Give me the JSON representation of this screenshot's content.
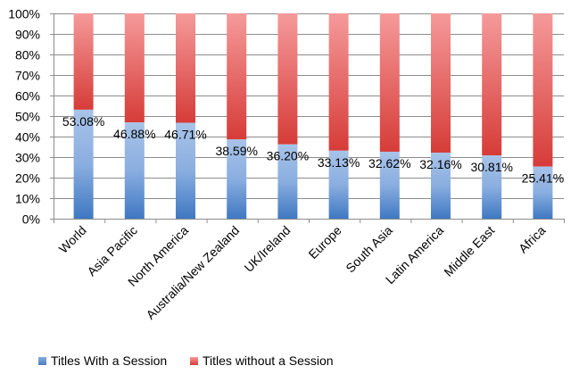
{
  "chart_data": {
    "type": "bar",
    "stacked": true,
    "normalized": true,
    "title": "",
    "xlabel": "",
    "ylabel": "",
    "ylim": [
      0,
      100
    ],
    "yticks": [
      "0%",
      "10%",
      "20%",
      "30%",
      "40%",
      "50%",
      "60%",
      "70%",
      "80%",
      "90%",
      "100%"
    ],
    "grid": true,
    "legend_position": "bottom",
    "categories": [
      "World",
      "Asia Pacific",
      "North America",
      "Australia/New Zealand",
      "UK/Ireland",
      "Europe",
      "South Asia",
      "Latin America",
      "Middle East",
      "Africa"
    ],
    "series": [
      {
        "name": "Titles With a Session",
        "color": "#4a7ebb",
        "values": [
          53.08,
          46.88,
          46.71,
          38.59,
          36.2,
          33.13,
          32.62,
          32.16,
          30.81,
          25.41
        ]
      },
      {
        "name": "Titles without a Session",
        "color": "#d9403e",
        "values": [
          46.92,
          53.12,
          53.29,
          61.41,
          63.8,
          66.87,
          67.38,
          67.84,
          69.19,
          74.59
        ]
      }
    ],
    "data_labels": [
      "53.08%",
      "46.88%",
      "46.71%",
      "38.59%",
      "36.20%",
      "33.13%",
      "32.62%",
      "32.16%",
      "30.81%",
      "25.41%"
    ]
  },
  "legend": {
    "items": [
      {
        "label": "Titles With a Session",
        "color": "#4a7ebb"
      },
      {
        "label": "Titles without a Session",
        "color": "#e05a5a"
      }
    ]
  }
}
